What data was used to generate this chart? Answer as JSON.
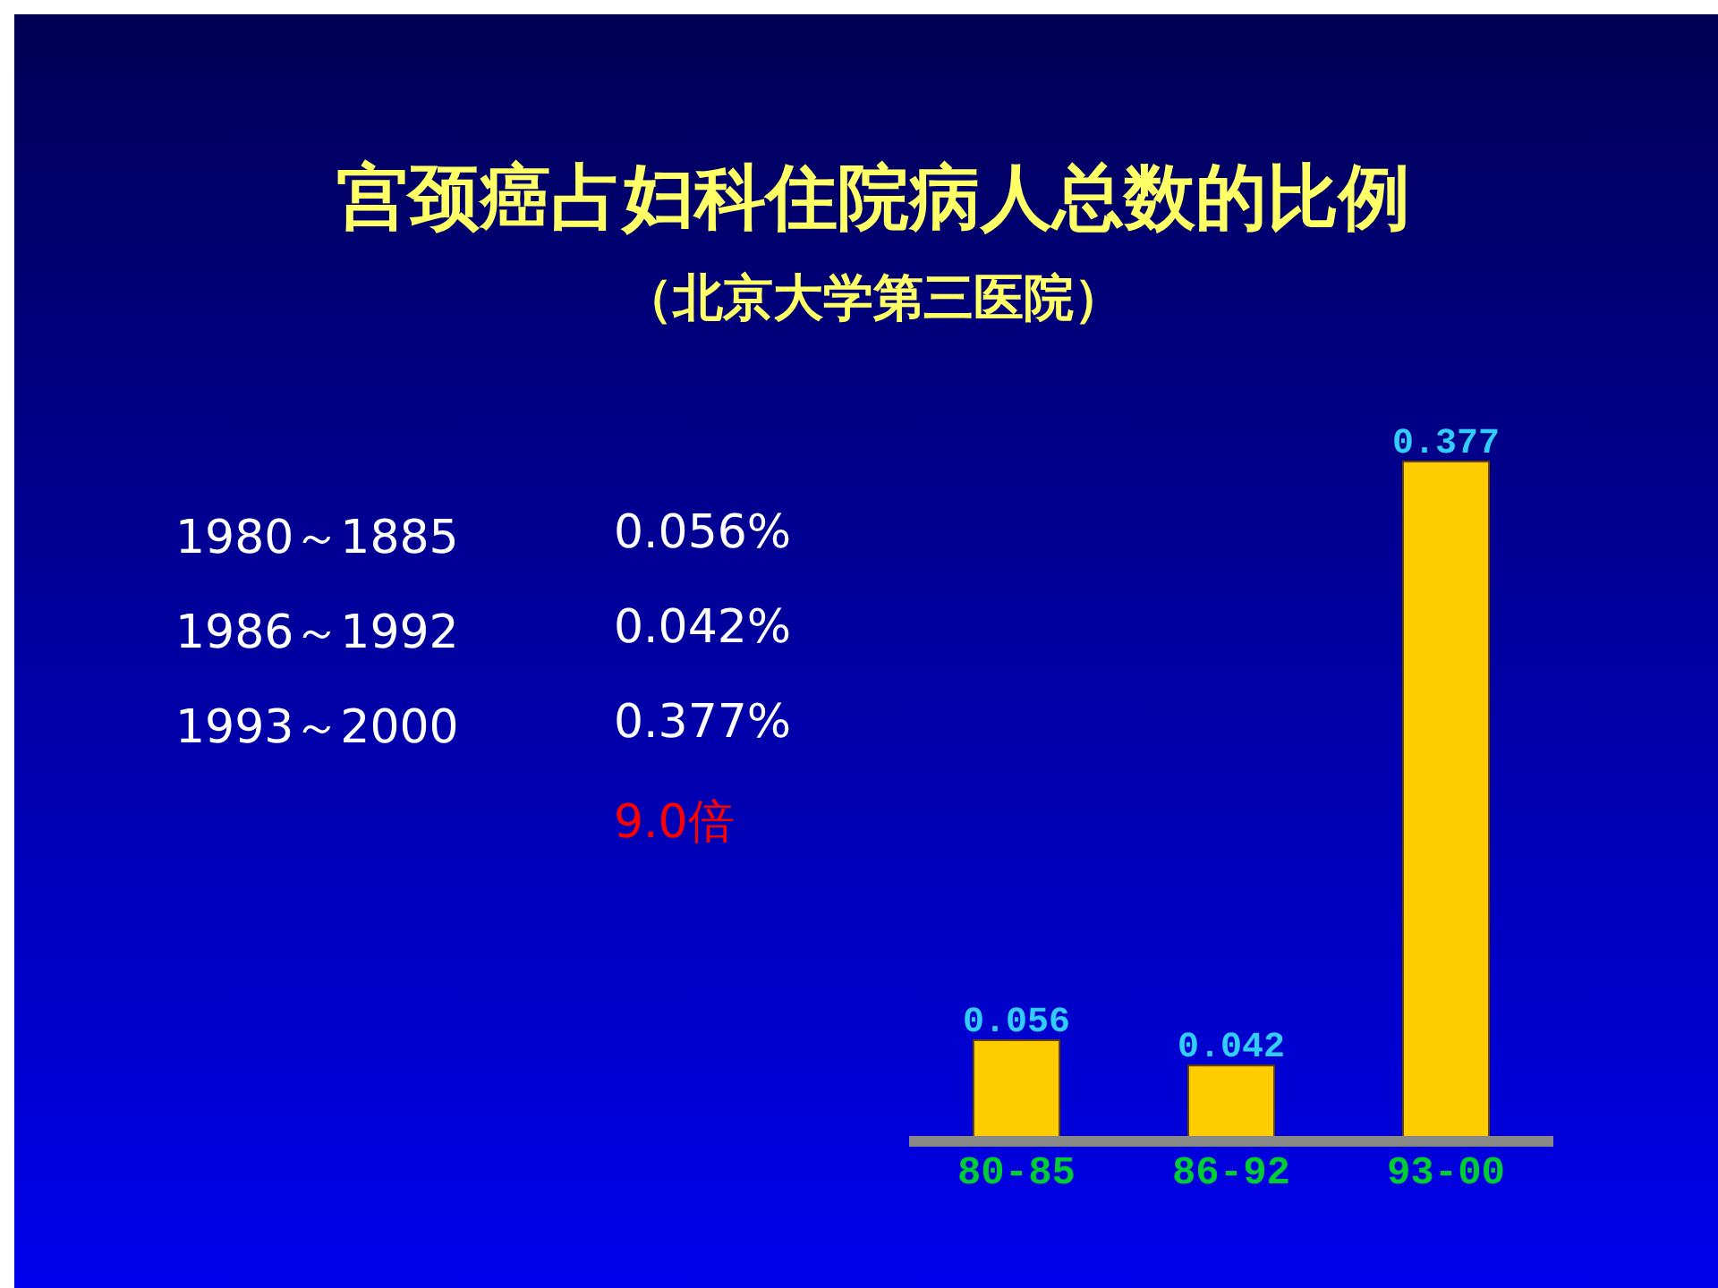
{
  "chart_data": {
    "type": "bar",
    "title": "宫颈癌占妇科住院病人总数的比例",
    "subtitle": "（北京大学第三医院）",
    "categories": [
      "80-85",
      "86-92",
      "93-00"
    ],
    "values": [
      0.056,
      0.042,
      0.377
    ],
    "color": "#ffcc00",
    "data_labels": true,
    "annotations": [
      "1980～1885",
      "0.056%",
      "1986～1992",
      "0.042%",
      "1993～2000",
      "0.377%",
      "9.0倍"
    ]
  }
}
